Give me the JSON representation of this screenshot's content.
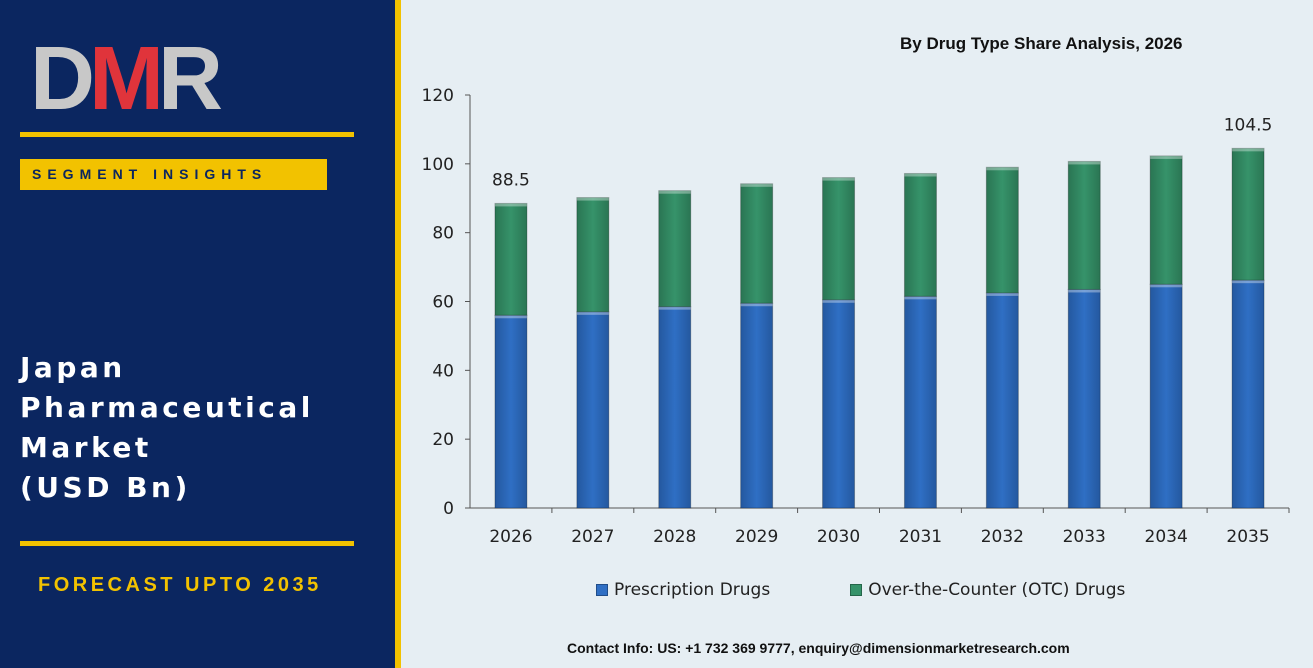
{
  "brand": {
    "logo_d": "D",
    "logo_m": "M",
    "logo_r": "R"
  },
  "sidebar": {
    "badge": "SEGMENT INSIGHTS",
    "title_lines": [
      "Japan",
      "Pharmaceutical",
      "Market",
      "(USD Bn)"
    ],
    "forecast": "FORECAST UPTO 2035"
  },
  "contact": "Contact Info: US: +1 732 369 9777, enquiry@dimensionmarketresearch.com",
  "colors": {
    "navy": "#0b2660",
    "gold": "#f2c200",
    "logo_red": "#e0343b",
    "prescription": "#2f6fc4",
    "otc": "#36936a"
  },
  "chart_data": {
    "type": "bar",
    "stacked": true,
    "title": "By Drug Type Share Analysis, 2026",
    "categories": [
      "2026",
      "2027",
      "2028",
      "2029",
      "2030",
      "2031",
      "2032",
      "2033",
      "2034",
      "2035"
    ],
    "series": [
      {
        "name": "Prescription Drugs",
        "values": [
          56.0,
          57.0,
          58.5,
          59.5,
          60.5,
          61.5,
          62.5,
          63.5,
          65.0,
          66.2
        ]
      },
      {
        "name": "Over-the-Counter (OTC) Drugs",
        "values": [
          32.5,
          33.2,
          33.7,
          34.7,
          35.5,
          35.7,
          36.5,
          37.2,
          37.3,
          38.3
        ]
      }
    ],
    "data_labels": [
      {
        "category": "2026",
        "text": "88.5"
      },
      {
        "category": "2035",
        "text": "104.5"
      }
    ],
    "ylim": [
      0,
      120
    ],
    "yticks": [
      0,
      20,
      40,
      60,
      80,
      100,
      120
    ],
    "xlabel": "",
    "ylabel": "",
    "grid": false,
    "legend": "bottom"
  }
}
